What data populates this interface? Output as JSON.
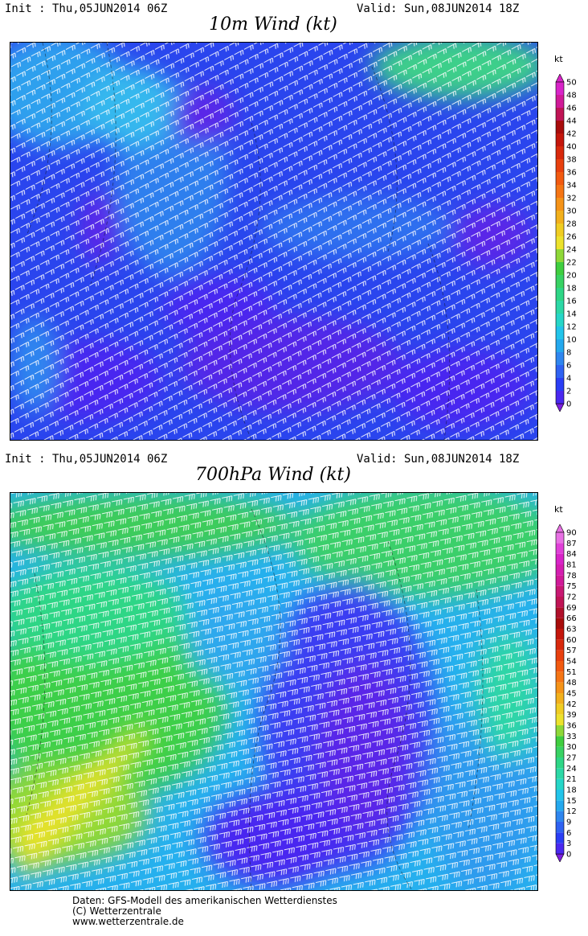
{
  "top": {
    "init": "Init : Thu,05JUN2014 06Z",
    "valid": "Valid: Sun,08JUN2014 18Z",
    "title": "10m Wind (kt)",
    "unit": "kt",
    "scale": [
      "0",
      "2",
      "4",
      "6",
      "8",
      "10",
      "12",
      "14",
      "16",
      "18",
      "20",
      "22",
      "24",
      "26",
      "28",
      "30",
      "32",
      "34",
      "36",
      "38",
      "40",
      "42",
      "44",
      "46",
      "48",
      "50"
    ],
    "colors": [
      "#7d1fe0",
      "#4a28f0",
      "#2a3ef5",
      "#2f62f2",
      "#2f86ef",
      "#24a8ee",
      "#22c4ea",
      "#26d6c8",
      "#2cd8a6",
      "#2ed686",
      "#38d263",
      "#3fce3f",
      "#8ed838",
      "#ece22c",
      "#f0cd22",
      "#f2b01c",
      "#f59318",
      "#f57514",
      "#f25a10",
      "#e8400e",
      "#d8290c",
      "#c4160b",
      "#a80c0b",
      "#c01455",
      "#d01a98",
      "#d824c8"
    ]
  },
  "bottom": {
    "init": "Init : Thu,05JUN2014 06Z",
    "valid": "Valid: Sun,08JUN2014 18Z",
    "title": "700hPa Wind (kt)",
    "unit": "kt",
    "scale": [
      "0",
      "3",
      "6",
      "9",
      "12",
      "15",
      "18",
      "21",
      "24",
      "27",
      "30",
      "33",
      "36",
      "39",
      "42",
      "45",
      "48",
      "51",
      "54",
      "57",
      "60",
      "63",
      "66",
      "69",
      "72",
      "75",
      "78",
      "81",
      "84",
      "87",
      "90"
    ],
    "colors": [
      "#7d1fe0",
      "#4a28f0",
      "#2a3ef5",
      "#2f62f2",
      "#2f86ef",
      "#24a8ee",
      "#22c4ea",
      "#26d6c8",
      "#2cd8a6",
      "#2ed686",
      "#38d263",
      "#3fce3f",
      "#8ed838",
      "#ece22c",
      "#f0cd22",
      "#f2b01c",
      "#f59318",
      "#f57514",
      "#f25a10",
      "#e8400e",
      "#d8290c",
      "#c4160b",
      "#a80c0b",
      "#b0102a",
      "#c01455",
      "#c81872",
      "#d01a98",
      "#d41eb0",
      "#d824c8",
      "#e040d8",
      "#e870e4"
    ]
  },
  "footer": {
    "line1": "Daten: GFS-Modell des amerikanischen Wetterdienstes",
    "line2": "(C) Wetterzentrale",
    "line3": "www.wetterzentrale.de"
  }
}
